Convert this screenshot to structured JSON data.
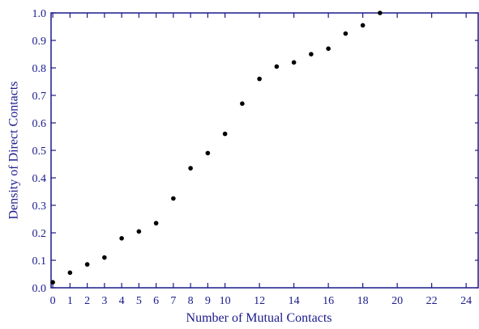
{
  "chart_data": {
    "type": "scatter",
    "title": "",
    "xlabel": "Number of Mutual Contacts",
    "ylabel": "Density of Direct Contacts",
    "xlim": [
      -0.1,
      24.7
    ],
    "ylim": [
      0.0,
      1.0
    ],
    "grid": false,
    "x_ticks": [
      {
        "value": 0,
        "label": "0"
      },
      {
        "value": 1,
        "label": "1"
      },
      {
        "value": 2,
        "label": "2"
      },
      {
        "value": 3,
        "label": "3"
      },
      {
        "value": 4,
        "label": "4"
      },
      {
        "value": 5,
        "label": "5"
      },
      {
        "value": 6,
        "label": "6"
      },
      {
        "value": 7,
        "label": "7"
      },
      {
        "value": 8,
        "label": "8"
      },
      {
        "value": 9,
        "label": "9"
      },
      {
        "value": 10,
        "label": "10"
      },
      {
        "value": 12,
        "label": "12"
      },
      {
        "value": 14,
        "label": "14"
      },
      {
        "value": 16,
        "label": "16"
      },
      {
        "value": 18,
        "label": "18"
      },
      {
        "value": 20,
        "label": "20"
      },
      {
        "value": 22,
        "label": "22"
      },
      {
        "value": 24,
        "label": "24"
      }
    ],
    "y_ticks": [
      {
        "value": 0.0,
        "label": "0.0"
      },
      {
        "value": 0.1,
        "label": "0.1"
      },
      {
        "value": 0.2,
        "label": "0.2"
      },
      {
        "value": 0.3,
        "label": "0.3"
      },
      {
        "value": 0.4,
        "label": "0.4"
      },
      {
        "value": 0.5,
        "label": "0.5"
      },
      {
        "value": 0.6,
        "label": "0.6"
      },
      {
        "value": 0.7,
        "label": "0.7"
      },
      {
        "value": 0.8,
        "label": "0.8"
      },
      {
        "value": 0.9,
        "label": "0.9"
      },
      {
        "value": 1.0,
        "label": "1.0"
      }
    ],
    "series": [
      {
        "x": [
          0,
          1,
          2,
          3,
          4,
          5,
          6,
          7,
          8,
          9,
          10,
          11,
          12,
          13,
          14,
          15,
          16,
          17,
          18,
          19
        ],
        "y": [
          0.02,
          0.055,
          0.085,
          0.11,
          0.18,
          0.205,
          0.235,
          0.325,
          0.435,
          0.49,
          0.56,
          0.67,
          0.76,
          0.805,
          0.82,
          0.85,
          0.87,
          0.925,
          0.955,
          1.0
        ]
      }
    ],
    "colors": {
      "axis": "#1a1a8c",
      "text": "#1a1a8c",
      "point": "#000000",
      "background": "#ffffff"
    }
  }
}
